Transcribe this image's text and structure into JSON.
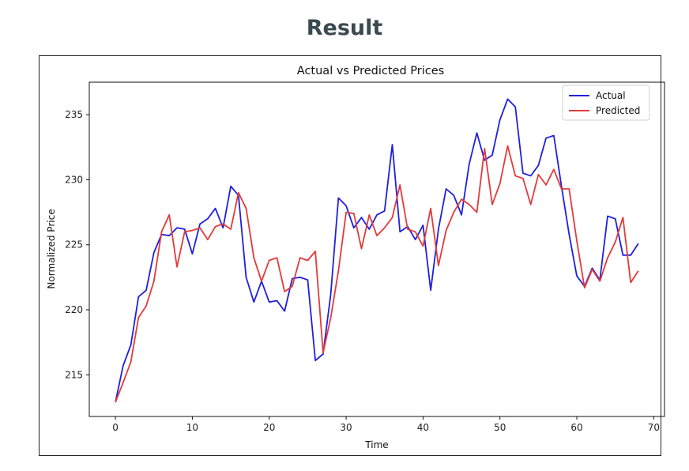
{
  "page": {
    "heading": "Result"
  },
  "chart_data": {
    "type": "line",
    "title": "Actual vs Predicted Prices",
    "xlabel": "Time",
    "ylabel": "Normalized Price",
    "xlim": [
      -3.4,
      71.4
    ],
    "ylim": [
      211.8,
      237.5
    ],
    "xticks": [
      0,
      10,
      20,
      30,
      40,
      50,
      60,
      70
    ],
    "yticks": [
      215,
      220,
      225,
      230,
      235
    ],
    "grid": false,
    "legend_position": "top-right",
    "x": [
      0,
      1,
      2,
      3,
      4,
      5,
      6,
      7,
      8,
      9,
      10,
      11,
      12,
      13,
      14,
      15,
      16,
      17,
      18,
      19,
      20,
      21,
      22,
      23,
      24,
      25,
      26,
      27,
      28,
      29,
      30,
      31,
      32,
      33,
      34,
      35,
      36,
      37,
      38,
      39,
      40,
      41,
      42,
      43,
      44,
      45,
      46,
      47,
      48,
      49,
      50,
      51,
      52,
      53,
      54,
      55,
      56,
      57,
      58,
      59,
      60,
      61,
      62,
      63,
      64,
      65,
      66,
      67,
      68
    ],
    "series": [
      {
        "name": "Actual",
        "color": "#1f1fe0",
        "values": [
          212.9,
          215.7,
          217.3,
          221.0,
          221.5,
          224.4,
          225.8,
          225.7,
          226.3,
          226.2,
          224.3,
          226.6,
          227.0,
          227.8,
          226.3,
          229.5,
          228.8,
          222.5,
          220.6,
          222.2,
          220.6,
          220.7,
          219.9,
          222.4,
          222.5,
          222.3,
          216.1,
          216.6,
          221.2,
          228.6,
          228.0,
          226.3,
          227.1,
          226.2,
          227.3,
          227.6,
          232.7,
          226.0,
          226.4,
          225.4,
          226.5,
          221.5,
          226.2,
          229.3,
          228.8,
          227.3,
          231.2,
          233.6,
          231.5,
          231.9,
          234.6,
          236.2,
          235.6,
          230.5,
          230.3,
          231.1,
          233.2,
          233.4,
          229.5,
          225.8,
          222.6,
          221.8,
          223.2,
          222.3,
          227.2,
          227.0,
          224.2,
          224.2,
          225.1
        ]
      },
      {
        "name": "Predicted",
        "color": "#e33a3a",
        "values": [
          212.9,
          214.4,
          216.0,
          219.4,
          220.3,
          222.2,
          226.0,
          227.3,
          223.3,
          226.0,
          226.1,
          226.3,
          225.4,
          226.4,
          226.6,
          226.2,
          229.0,
          227.8,
          224.0,
          222.2,
          223.8,
          224.0,
          221.4,
          221.8,
          224.0,
          223.8,
          224.5,
          216.7,
          219.4,
          223.0,
          227.5,
          227.4,
          224.7,
          227.3,
          225.7,
          226.3,
          227.1,
          229.6,
          226.2,
          226.0,
          224.9,
          227.8,
          223.4,
          226.1,
          227.5,
          228.5,
          228.1,
          227.5,
          232.4,
          228.1,
          229.7,
          232.6,
          230.3,
          230.1,
          228.1,
          230.4,
          229.6,
          230.8,
          229.3,
          229.3,
          225.3,
          221.7,
          223.1,
          222.2,
          224.0,
          225.2,
          227.1,
          222.1,
          223.0
        ]
      }
    ]
  }
}
